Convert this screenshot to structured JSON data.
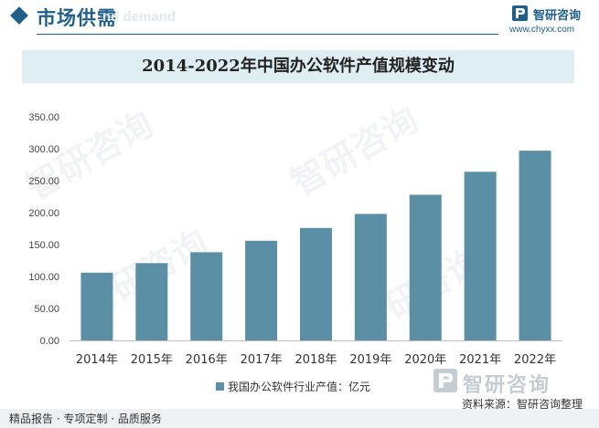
{
  "header": {
    "section_title": "市场供需",
    "section_subtitle": "nd demand",
    "brand_name": "智研咨询",
    "brand_url": "www.chyxx.com"
  },
  "chart_data": {
    "type": "bar",
    "title": "2014-2022年中国办公软件产值规模变动",
    "categories": [
      "2014年",
      "2015年",
      "2016年",
      "2017年",
      "2018年",
      "2019年",
      "2020年",
      "2021年",
      "2022年"
    ],
    "series": [
      {
        "name": "我国办公软件行业产值：亿元",
        "values": [
          106,
          121,
          138,
          156,
          176,
          198,
          228,
          264,
          297
        ],
        "color": "#5b8fa6"
      }
    ],
    "ylim": [
      0,
      350
    ],
    "yticks": [
      "0.00",
      "50.00",
      "100.00",
      "150.00",
      "200.00",
      "250.00",
      "300.00",
      "350.00"
    ],
    "ytick_values": [
      0,
      50,
      100,
      150,
      200,
      250,
      300,
      350
    ],
    "grid": false,
    "legend": "bottom"
  },
  "watermark": {
    "text": "智研咨询"
  },
  "footer": {
    "brand_name": "智研咨询",
    "source": "资料来源：智研咨询整理",
    "tagline": "精品报告 · 专项定制 · 品质服务"
  }
}
